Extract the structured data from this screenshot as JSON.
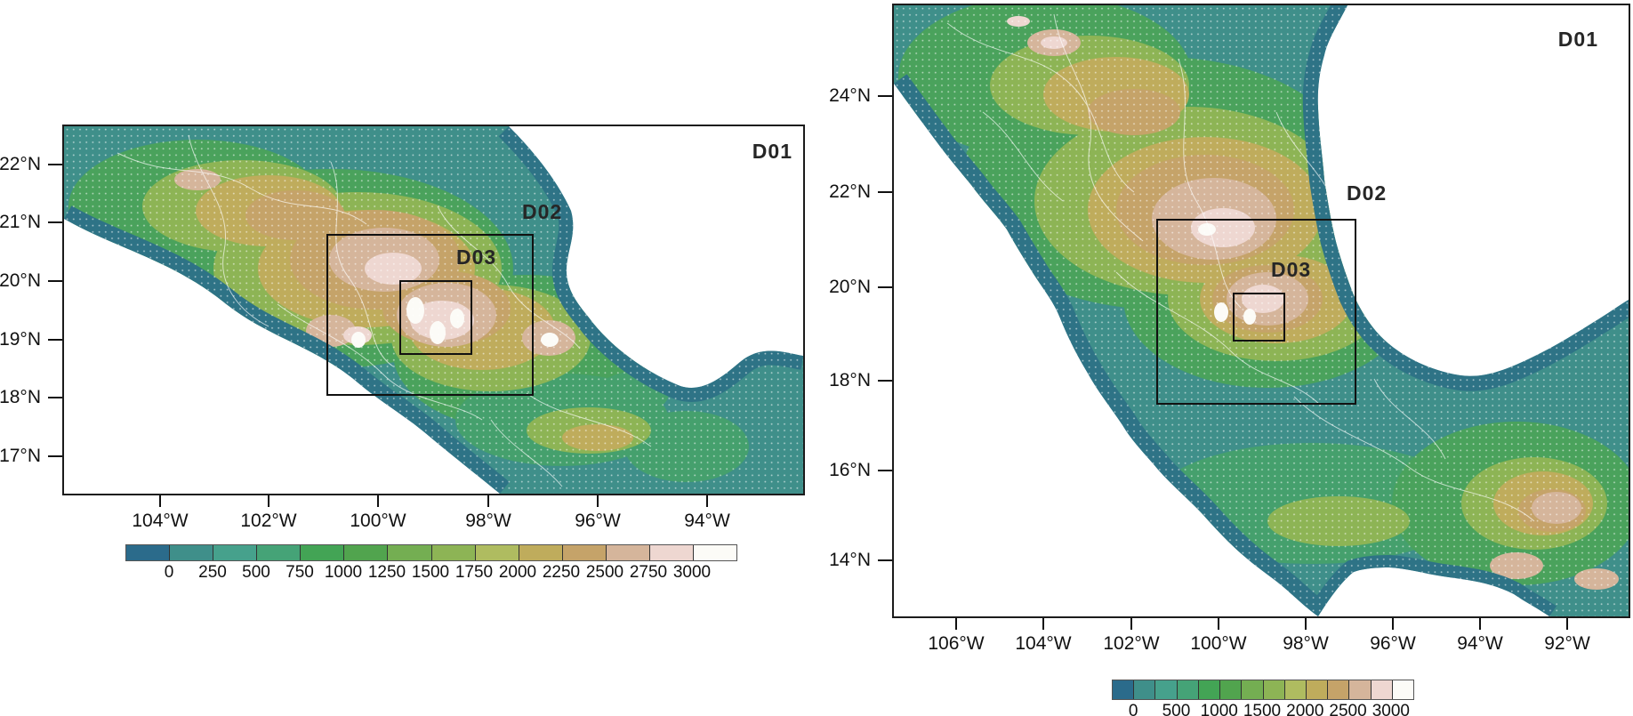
{
  "figure": {
    "description": "Two nested WRF model domain maps (D01/D02/D03) over Mexico with terrain elevation shading",
    "background_color": "#ffffff",
    "ocean_color": "#ffffff"
  },
  "elevation_palette": [
    "#2B6B8B",
    "#3F8F8A",
    "#46A18C",
    "#45A377",
    "#43A455",
    "#51A44E",
    "#74AE52",
    "#8DB455",
    "#AFBC60",
    "#BFAC5C",
    "#C5A369",
    "#D5B59B",
    "#EED7D1",
    "#FCFBF7"
  ],
  "panels": [
    {
      "name": "left",
      "domain_labels": {
        "d01": "D01",
        "d02": "D02",
        "d03": "D03"
      },
      "y_tick_labels": [
        "22°N",
        "21°N",
        "20°N",
        "19°N",
        "18°N",
        "17°N"
      ],
      "x_tick_labels": [
        "104°W",
        "102°W",
        "100°W",
        "98°W",
        "96°W",
        "94°W"
      ],
      "colorbar_labels": [
        "0",
        "250",
        "500",
        "750",
        "1000",
        "1250",
        "1500",
        "1750",
        "2000",
        "2250",
        "2500",
        "2750",
        "3000"
      ],
      "axis_extent": {
        "lon_west": "105.8°W",
        "lon_east": "92.2°W",
        "lat_north": "22.7°N",
        "lat_south": "16.3°N"
      },
      "d02_extent": {
        "lon_west": "101.0°W",
        "lon_east": "97.2°W",
        "lat_north": "20.8°N",
        "lat_south": "18.1°N"
      },
      "d03_extent": {
        "lon_west": "99.7°W",
        "lon_east": "98.3°W",
        "lat_north": "20.1°N",
        "lat_south": "18.8°N"
      }
    },
    {
      "name": "right",
      "domain_labels": {
        "d01": "D01",
        "d02": "D02",
        "d03": "D03"
      },
      "y_tick_labels": [
        "24°N",
        "22°N",
        "20°N",
        "18°N",
        "16°N",
        "14°N"
      ],
      "x_tick_labels": [
        "106°W",
        "104°W",
        "102°W",
        "100°W",
        "98°W",
        "96°W",
        "94°W",
        "92°W"
      ],
      "colorbar_labels": [
        "0",
        "500",
        "1000",
        "1500",
        "2000",
        "2500",
        "3000"
      ],
      "axis_extent": {
        "lon_west": "107.5°W",
        "lon_east": "90.5°W",
        "lat_north": "26.0°N",
        "lat_south": "12.8°N"
      },
      "d02_extent": {
        "lon_west": "101.4°W",
        "lon_east": "96.9°W",
        "lat_north": "21.4°N",
        "lat_south": "17.4°N"
      },
      "d03_extent": {
        "lon_west": "99.7°W",
        "lon_east": "98.5°W",
        "lat_north": "19.8°N",
        "lat_south": "18.8°N"
      }
    }
  ]
}
